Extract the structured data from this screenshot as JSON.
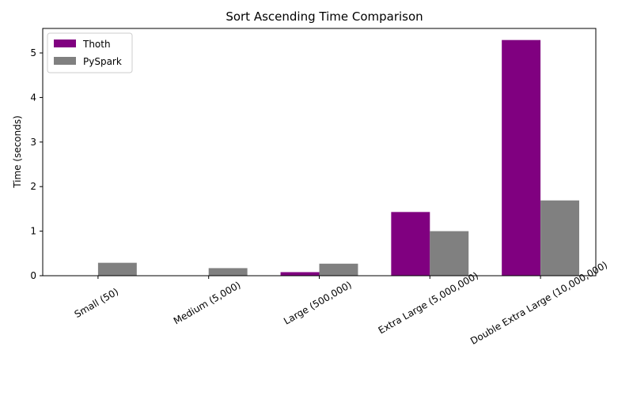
{
  "chart_data": {
    "type": "bar",
    "title": "Sort Ascending Time Comparison",
    "xlabel": "",
    "ylabel": "Time (seconds)",
    "categories": [
      "Small (50)",
      "Medium (5,000)",
      "Large (500,000)",
      "Extra Large (5,000,000)",
      "Double Extra Large (10,000,000)"
    ],
    "series": [
      {
        "name": "Thoth",
        "color": "#800080",
        "values": [
          0.003,
          0.005,
          0.08,
          1.43,
          5.29
        ]
      },
      {
        "name": "PySpark",
        "color": "#808080",
        "values": [
          0.29,
          0.17,
          0.27,
          1.0,
          1.69
        ]
      }
    ],
    "ylim": [
      0,
      5.55
    ],
    "yticks": [
      0,
      1,
      2,
      3,
      4,
      5
    ],
    "legend_position": "top-left",
    "grid": false
  }
}
